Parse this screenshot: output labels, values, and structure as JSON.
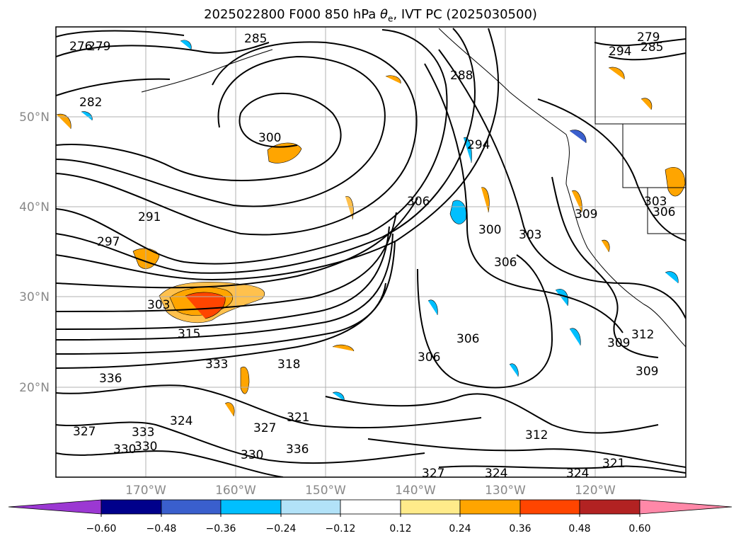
{
  "title_main": "2025022800 F000 850 hPa ",
  "title_symbol": "θ",
  "title_sub": "e",
  "title_tail": ", IVT PC (2025030500)",
  "map": {
    "lon_labels": [
      "170°W",
      "160°W",
      "150°W",
      "140°W",
      "130°W",
      "120°W"
    ],
    "lat_labels": [
      "50°N",
      "40°N",
      "30°N",
      "20°N"
    ],
    "contour_labels": [
      "276",
      "279",
      "282",
      "285",
      "288",
      "291",
      "294",
      "297",
      "300",
      "303",
      "306",
      "309",
      "312",
      "315",
      "318",
      "321",
      "324",
      "327",
      "330",
      "333",
      "336",
      "279",
      "285",
      "294",
      "300",
      "303",
      "306",
      "306",
      "306",
      "309",
      "309",
      "312",
      "324",
      "327",
      "324",
      "330",
      "333",
      "336",
      "330",
      "327",
      "321",
      "303",
      "306"
    ]
  },
  "colorbar": {
    "ticks": [
      "−0.60",
      "−0.48",
      "−0.36",
      "−0.24",
      "−0.12",
      "0.12",
      "0.24",
      "0.36",
      "0.48",
      "0.60"
    ],
    "colors": {
      "under": "#9b38d2",
      "bins": [
        "#00008b",
        "#3a5fcd",
        "#00bfff",
        "#b2e2f8",
        "#ffffff",
        "#ffeb8a",
        "#ffa500",
        "#ff4500",
        "#b22222",
        "#ff88a8"
      ],
      "over": "#ff88a8"
    }
  }
}
